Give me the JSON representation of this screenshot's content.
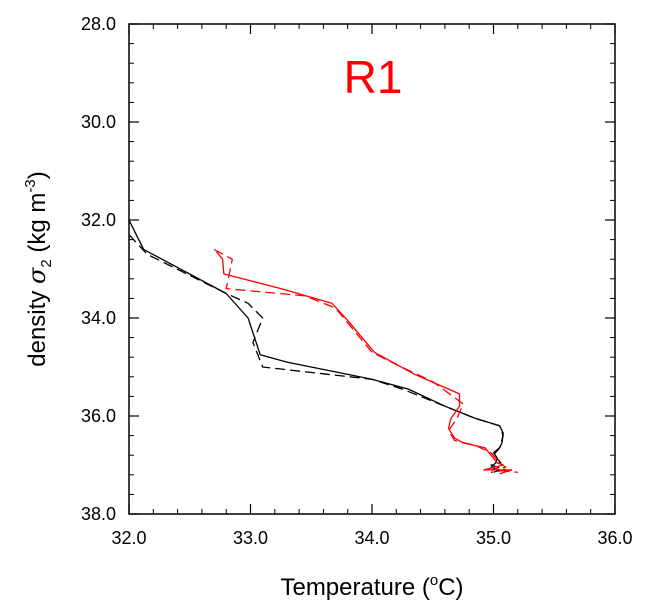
{
  "chart_data": {
    "type": "line",
    "title": "R1",
    "title_color": "#ff0000",
    "xlabel": {
      "main": "Temperature (",
      "sup": "o",
      "end": "C)"
    },
    "ylabel": {
      "main": "density ",
      "sym": "σ",
      "sub": "2",
      "unit": " (kg m",
      "sup": "-3",
      "end": ")"
    },
    "xlim": [
      32.0,
      36.0
    ],
    "ylim": [
      28.0,
      38.0
    ],
    "y_inverted": true,
    "grid": false,
    "x_ticks": [
      {
        "value": 32.0,
        "label": "32.0"
      },
      {
        "value": 33.0,
        "label": "33.0"
      },
      {
        "value": 34.0,
        "label": "34.0"
      },
      {
        "value": 35.0,
        "label": "35.0"
      },
      {
        "value": 36.0,
        "label": "36.0"
      }
    ],
    "y_ticks": [
      {
        "value": 28.0,
        "label": "28.0"
      },
      {
        "value": 30.0,
        "label": "30.0"
      },
      {
        "value": 32.0,
        "label": "32.0"
      },
      {
        "value": 34.0,
        "label": "34.0"
      },
      {
        "value": 36.0,
        "label": "36.0"
      },
      {
        "value": 38.0,
        "label": "38.0"
      }
    ],
    "series": [
      {
        "color": "#000000",
        "style": "solid",
        "x": [
          32.0,
          32.12,
          32.8,
          32.98,
          33.08,
          33.3,
          34.0,
          34.3,
          34.6,
          34.85,
          35.05,
          35.08,
          35.07,
          35.05,
          35.0,
          35.03,
          35.02,
          34.98,
          35.05,
          35.0
        ],
        "y": [
          32.0,
          32.6,
          33.5,
          34.0,
          34.75,
          34.9,
          35.25,
          35.45,
          35.8,
          36.05,
          36.2,
          36.35,
          36.55,
          36.65,
          36.75,
          36.85,
          36.95,
          37.05,
          37.1,
          37.15
        ]
      },
      {
        "color": "#000000",
        "style": "dashed",
        "x": [
          32.0,
          32.15,
          32.8,
          32.98,
          33.1,
          33.02,
          33.1,
          34.0,
          34.25,
          34.6,
          34.85,
          35.05,
          35.08,
          35.05,
          35.0,
          35.06,
          34.98,
          35.1,
          34.98
        ],
        "y": [
          32.3,
          32.7,
          33.5,
          33.7,
          34.0,
          34.5,
          35.0,
          35.25,
          35.45,
          35.8,
          36.05,
          36.2,
          36.4,
          36.65,
          36.8,
          36.95,
          37.0,
          37.1,
          37.15
        ]
      },
      {
        "color": "#ff0000",
        "style": "solid",
        "x": [
          32.72,
          32.77,
          32.78,
          33.25,
          33.67,
          33.8,
          34.02,
          34.35,
          34.72,
          34.72,
          34.65,
          34.63,
          34.68,
          34.75,
          34.93,
          34.98,
          35.03,
          35.08,
          34.92,
          35.15,
          35.05
        ],
        "y": [
          32.65,
          32.8,
          33.1,
          33.4,
          33.7,
          34.05,
          34.7,
          35.15,
          35.55,
          35.8,
          36.05,
          36.25,
          36.45,
          36.55,
          36.65,
          36.8,
          36.95,
          37.0,
          37.1,
          37.1,
          37.18
        ]
      },
      {
        "color": "#ff0000",
        "style": "dashed",
        "x": [
          32.7,
          32.85,
          32.8,
          33.45,
          33.7,
          34.0,
          34.2,
          34.5,
          34.75,
          34.7,
          34.63,
          34.68,
          34.85,
          34.98,
          35.05,
          35.1,
          34.98,
          35.2
        ],
        "y": [
          32.6,
          32.8,
          33.4,
          33.55,
          33.8,
          34.7,
          34.95,
          35.3,
          35.75,
          36.05,
          36.3,
          36.5,
          36.6,
          36.75,
          36.95,
          37.05,
          37.1,
          37.15
        ]
      }
    ]
  }
}
